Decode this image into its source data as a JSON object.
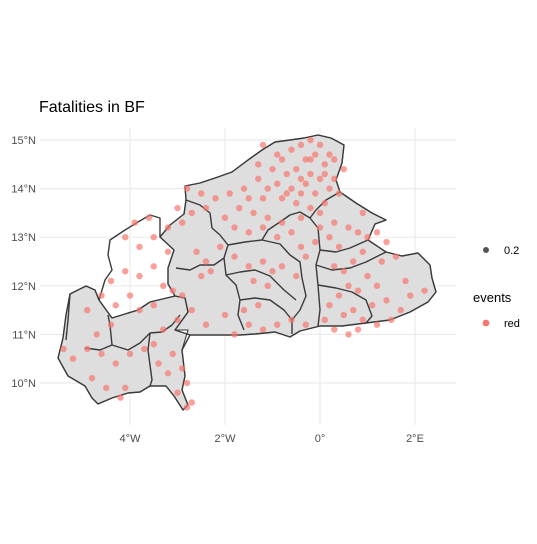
{
  "chart_data": {
    "type": "scatter",
    "title": "Fatalities in BF",
    "xlabel": "",
    "ylabel": "",
    "xlim": [
      -5.6,
      2.6
    ],
    "ylim": [
      9.2,
      15.3
    ],
    "x_ticks": [
      {
        "value": -4,
        "label": "4°W"
      },
      {
        "value": -2,
        "label": "2°W"
      },
      {
        "value": 0,
        "label": "0°"
      },
      {
        "value": 2,
        "label": "2°E"
      }
    ],
    "y_ticks": [
      {
        "value": 10,
        "label": "10°N"
      },
      {
        "value": 11,
        "label": "11°N"
      },
      {
        "value": 12,
        "label": "12°N"
      },
      {
        "value": 13,
        "label": "13°N"
      },
      {
        "value": 14,
        "label": "14°N"
      },
      {
        "value": 15,
        "label": "15°N"
      }
    ],
    "grid": true,
    "point_color": "#f8766d",
    "point_alpha": 0.7,
    "legend": {
      "placement": "right",
      "size_value": "0.2",
      "color_title": "events",
      "color_label": "red"
    },
    "series": [
      {
        "name": "red",
        "points": [
          [
            -0.6,
            14.8
          ],
          [
            -0.4,
            14.9
          ],
          [
            -0.2,
            15.0
          ],
          [
            0.0,
            14.9
          ],
          [
            0.2,
            14.7
          ],
          [
            -0.8,
            14.6
          ],
          [
            -0.3,
            14.6
          ],
          [
            0.1,
            14.5
          ],
          [
            -1.0,
            14.4
          ],
          [
            -0.7,
            14.3
          ],
          [
            -0.5,
            14.4
          ],
          [
            -0.2,
            14.3
          ],
          [
            0.0,
            14.2
          ],
          [
            0.3,
            14.2
          ],
          [
            -1.3,
            14.2
          ],
          [
            -0.9,
            14.1
          ],
          [
            -0.6,
            14.0
          ],
          [
            -0.3,
            14.1
          ],
          [
            -0.1,
            13.9
          ],
          [
            0.2,
            14.0
          ],
          [
            0.4,
            13.9
          ],
          [
            -1.6,
            14.0
          ],
          [
            -1.9,
            13.9
          ],
          [
            -1.5,
            13.8
          ],
          [
            -1.2,
            13.8
          ],
          [
            -0.8,
            13.8
          ],
          [
            -0.5,
            13.7
          ],
          [
            -0.2,
            13.6
          ],
          [
            0.1,
            13.7
          ],
          [
            -2.2,
            13.8
          ],
          [
            -2.5,
            13.9
          ],
          [
            -2.8,
            14.0
          ],
          [
            -1.7,
            13.6
          ],
          [
            -1.4,
            13.5
          ],
          [
            -1.1,
            13.4
          ],
          [
            -0.8,
            13.3
          ],
          [
            -0.4,
            13.4
          ],
          [
            0.0,
            13.5
          ],
          [
            -2.0,
            13.4
          ],
          [
            -1.8,
            13.2
          ],
          [
            -1.5,
            13.1
          ],
          [
            -1.2,
            13.2
          ],
          [
            -0.9,
            13.0
          ],
          [
            -0.6,
            13.1
          ],
          [
            -1.3,
            14.5
          ],
          [
            -0.9,
            14.7
          ],
          [
            -1.2,
            14.9
          ],
          [
            -0.4,
            14.2
          ],
          [
            -2.4,
            13.6
          ],
          [
            -2.7,
            13.5
          ],
          [
            -3.0,
            13.6
          ],
          [
            -2.9,
            13.3
          ],
          [
            -3.2,
            13.2
          ],
          [
            -3.6,
            13.4
          ],
          [
            -3.9,
            13.3
          ],
          [
            -4.1,
            13.0
          ],
          [
            -3.5,
            13.0
          ],
          [
            -3.8,
            12.8
          ],
          [
            -3.2,
            12.7
          ],
          [
            -2.6,
            12.7
          ],
          [
            -2.4,
            12.5
          ],
          [
            -2.1,
            12.8
          ],
          [
            -2.3,
            12.3
          ],
          [
            -2.5,
            12.2
          ],
          [
            -1.8,
            12.6
          ],
          [
            -1.5,
            12.4
          ],
          [
            -1.2,
            12.5
          ],
          [
            -1.0,
            12.3
          ],
          [
            -1.4,
            12.1
          ],
          [
            -1.1,
            12.0
          ],
          [
            -0.8,
            12.4
          ],
          [
            -0.5,
            12.2
          ],
          [
            -0.3,
            12.6
          ],
          [
            -0.1,
            12.9
          ],
          [
            -0.4,
            12.8
          ],
          [
            0.2,
            13.0
          ],
          [
            0.4,
            12.8
          ],
          [
            0.6,
            13.2
          ],
          [
            0.8,
            13.1
          ],
          [
            1.0,
            13.0
          ],
          [
            1.2,
            13.1
          ],
          [
            1.4,
            12.9
          ],
          [
            1.6,
            12.6
          ],
          [
            1.3,
            12.5
          ],
          [
            0.9,
            12.7
          ],
          [
            0.7,
            12.5
          ],
          [
            0.5,
            12.3
          ],
          [
            0.3,
            12.4
          ],
          [
            1.0,
            12.2
          ],
          [
            1.2,
            12.0
          ],
          [
            0.8,
            11.9
          ],
          [
            0.6,
            12.0
          ],
          [
            0.4,
            11.8
          ],
          [
            0.2,
            11.6
          ],
          [
            0.5,
            11.4
          ],
          [
            0.7,
            11.5
          ],
          [
            0.9,
            11.3
          ],
          [
            1.1,
            11.6
          ],
          [
            1.4,
            11.7
          ],
          [
            1.7,
            11.5
          ],
          [
            1.5,
            11.3
          ],
          [
            1.2,
            11.2
          ],
          [
            0.8,
            11.1
          ],
          [
            0.6,
            11.0
          ],
          [
            0.3,
            11.1
          ],
          [
            0.1,
            11.3
          ],
          [
            1.9,
            11.8
          ],
          [
            2.2,
            11.9
          ],
          [
            1.8,
            12.1
          ],
          [
            0.3,
            13.3
          ],
          [
            0.0,
            13.2
          ],
          [
            0.9,
            13.5
          ],
          [
            -0.3,
            11.2
          ],
          [
            -0.6,
            11.3
          ],
          [
            -0.9,
            11.2
          ],
          [
            -1.2,
            11.1
          ],
          [
            -1.5,
            11.2
          ],
          [
            -1.8,
            11.0
          ],
          [
            -1.6,
            11.5
          ],
          [
            -1.3,
            11.6
          ],
          [
            -2.0,
            11.4
          ],
          [
            -2.4,
            11.2
          ],
          [
            -2.7,
            11.5
          ],
          [
            -3.0,
            11.3
          ],
          [
            -3.3,
            11.1
          ],
          [
            -3.5,
            10.8
          ],
          [
            -3.1,
            10.6
          ],
          [
            -2.9,
            10.3
          ],
          [
            -3.2,
            10.2
          ],
          [
            -2.8,
            10.0
          ],
          [
            -3.0,
            9.8
          ],
          [
            -2.7,
            9.6
          ],
          [
            -2.8,
            9.5
          ],
          [
            -3.4,
            10.4
          ],
          [
            -3.7,
            10.7
          ],
          [
            -4.0,
            10.6
          ],
          [
            -4.3,
            10.4
          ],
          [
            -4.6,
            10.6
          ],
          [
            -4.9,
            10.7
          ],
          [
            -5.2,
            10.5
          ],
          [
            -5.4,
            10.7
          ],
          [
            -4.8,
            10.1
          ],
          [
            -4.5,
            9.9
          ],
          [
            -4.2,
            9.7
          ],
          [
            -4.1,
            9.9
          ],
          [
            -4.4,
            11.2
          ],
          [
            -4.7,
            11.0
          ],
          [
            -4.9,
            11.5
          ],
          [
            -4.6,
            11.8
          ],
          [
            -4.3,
            11.6
          ],
          [
            -4.0,
            11.8
          ],
          [
            -3.8,
            11.5
          ],
          [
            -3.5,
            11.6
          ],
          [
            -3.8,
            12.2
          ],
          [
            -4.1,
            12.3
          ],
          [
            -4.4,
            12.1
          ],
          [
            -3.5,
            12.4
          ],
          [
            -3.3,
            12.0
          ],
          [
            -3.1,
            11.9
          ],
          [
            -2.9,
            11.8
          ],
          [
            -0.2,
            14.6
          ],
          [
            0.1,
            14.3
          ],
          [
            -0.7,
            13.9
          ],
          [
            -1.1,
            14.0
          ],
          [
            -0.4,
            13.9
          ],
          [
            0.3,
            14.6
          ],
          [
            0.5,
            14.4
          ],
          [
            -0.1,
            14.7
          ]
        ]
      }
    ]
  }
}
